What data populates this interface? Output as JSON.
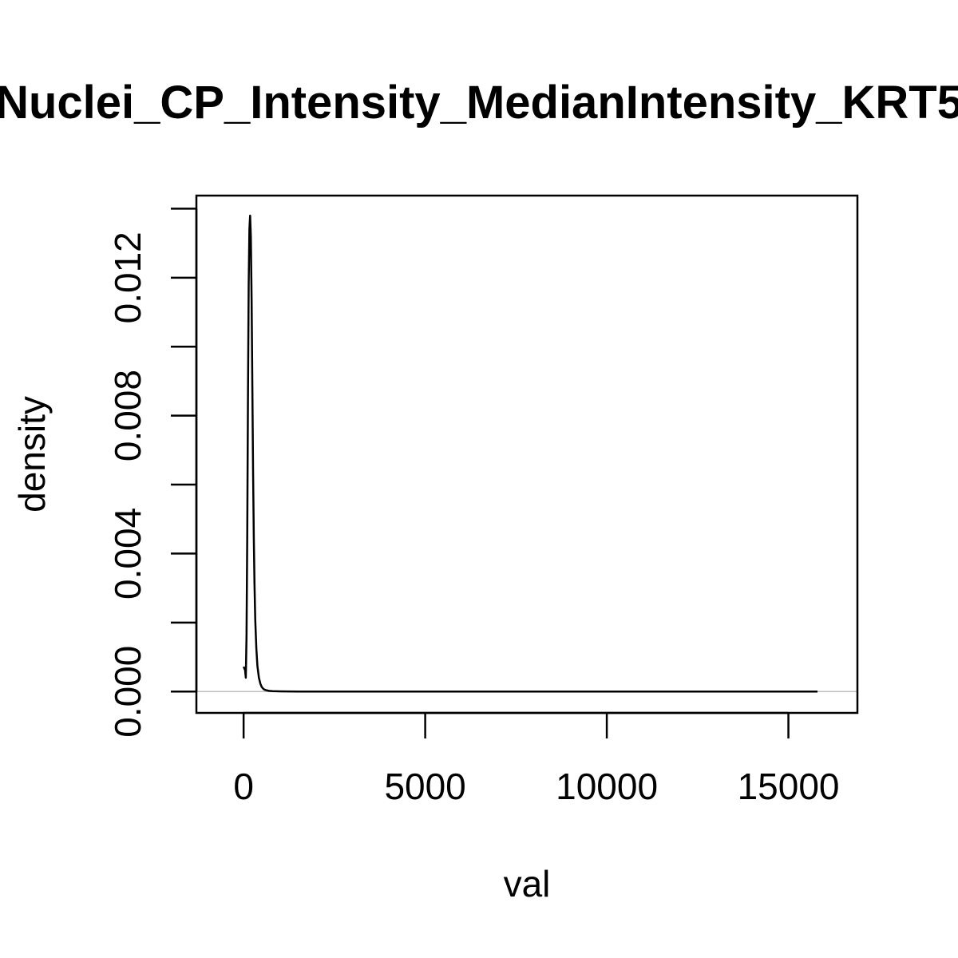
{
  "chart_data": {
    "type": "line",
    "title": "Nuclei_CP_Intensity_MedianIntensity_KRT5",
    "xlabel": "val",
    "ylabel": "density",
    "xlim": [
      -1300,
      16900
    ],
    "ylim": [
      -0.00062,
      0.01438
    ],
    "x_ticks": [
      0,
      5000,
      10000,
      15000
    ],
    "x_tick_labels": [
      "0",
      "5000",
      "10000",
      "15000"
    ],
    "y_ticks": [
      0.0,
      0.002,
      0.004,
      0.006,
      0.008,
      0.01,
      0.012,
      0.014
    ],
    "y_tick_labels": [
      "0.000",
      "",
      "0.004",
      "",
      "0.008",
      "",
      "0.012",
      ""
    ],
    "zero_line_color": "#bebebe",
    "line_color": "#000000",
    "grid": false,
    "series": [
      {
        "x": [
          0,
          40,
          60,
          80,
          100,
          120,
          140,
          160,
          180,
          200,
          220,
          240,
          260,
          280,
          300,
          320,
          350,
          380,
          420,
          460,
          500,
          550,
          600,
          700,
          800,
          1000,
          1200,
          1500,
          2000,
          3000,
          4000,
          6000,
          8000,
          10000,
          12000,
          14000,
          15800
        ],
        "y": [
          0.00072,
          0.00062,
          0.0004,
          0.0016,
          0.0045,
          0.0085,
          0.0118,
          0.0134,
          0.0138,
          0.0132,
          0.0113,
          0.0088,
          0.0064,
          0.0045,
          0.0031,
          0.0021,
          0.00125,
          0.00075,
          0.0004,
          0.00023,
          0.00013,
          7e-05,
          4.5e-05,
          2e-05,
          1e-05,
          4e-06,
          2e-06,
          1e-06,
          5e-07,
          2e-07,
          1e-07,
          5e-08,
          3e-08,
          2e-08,
          1e-08,
          1e-08,
          0.0
        ]
      }
    ]
  }
}
